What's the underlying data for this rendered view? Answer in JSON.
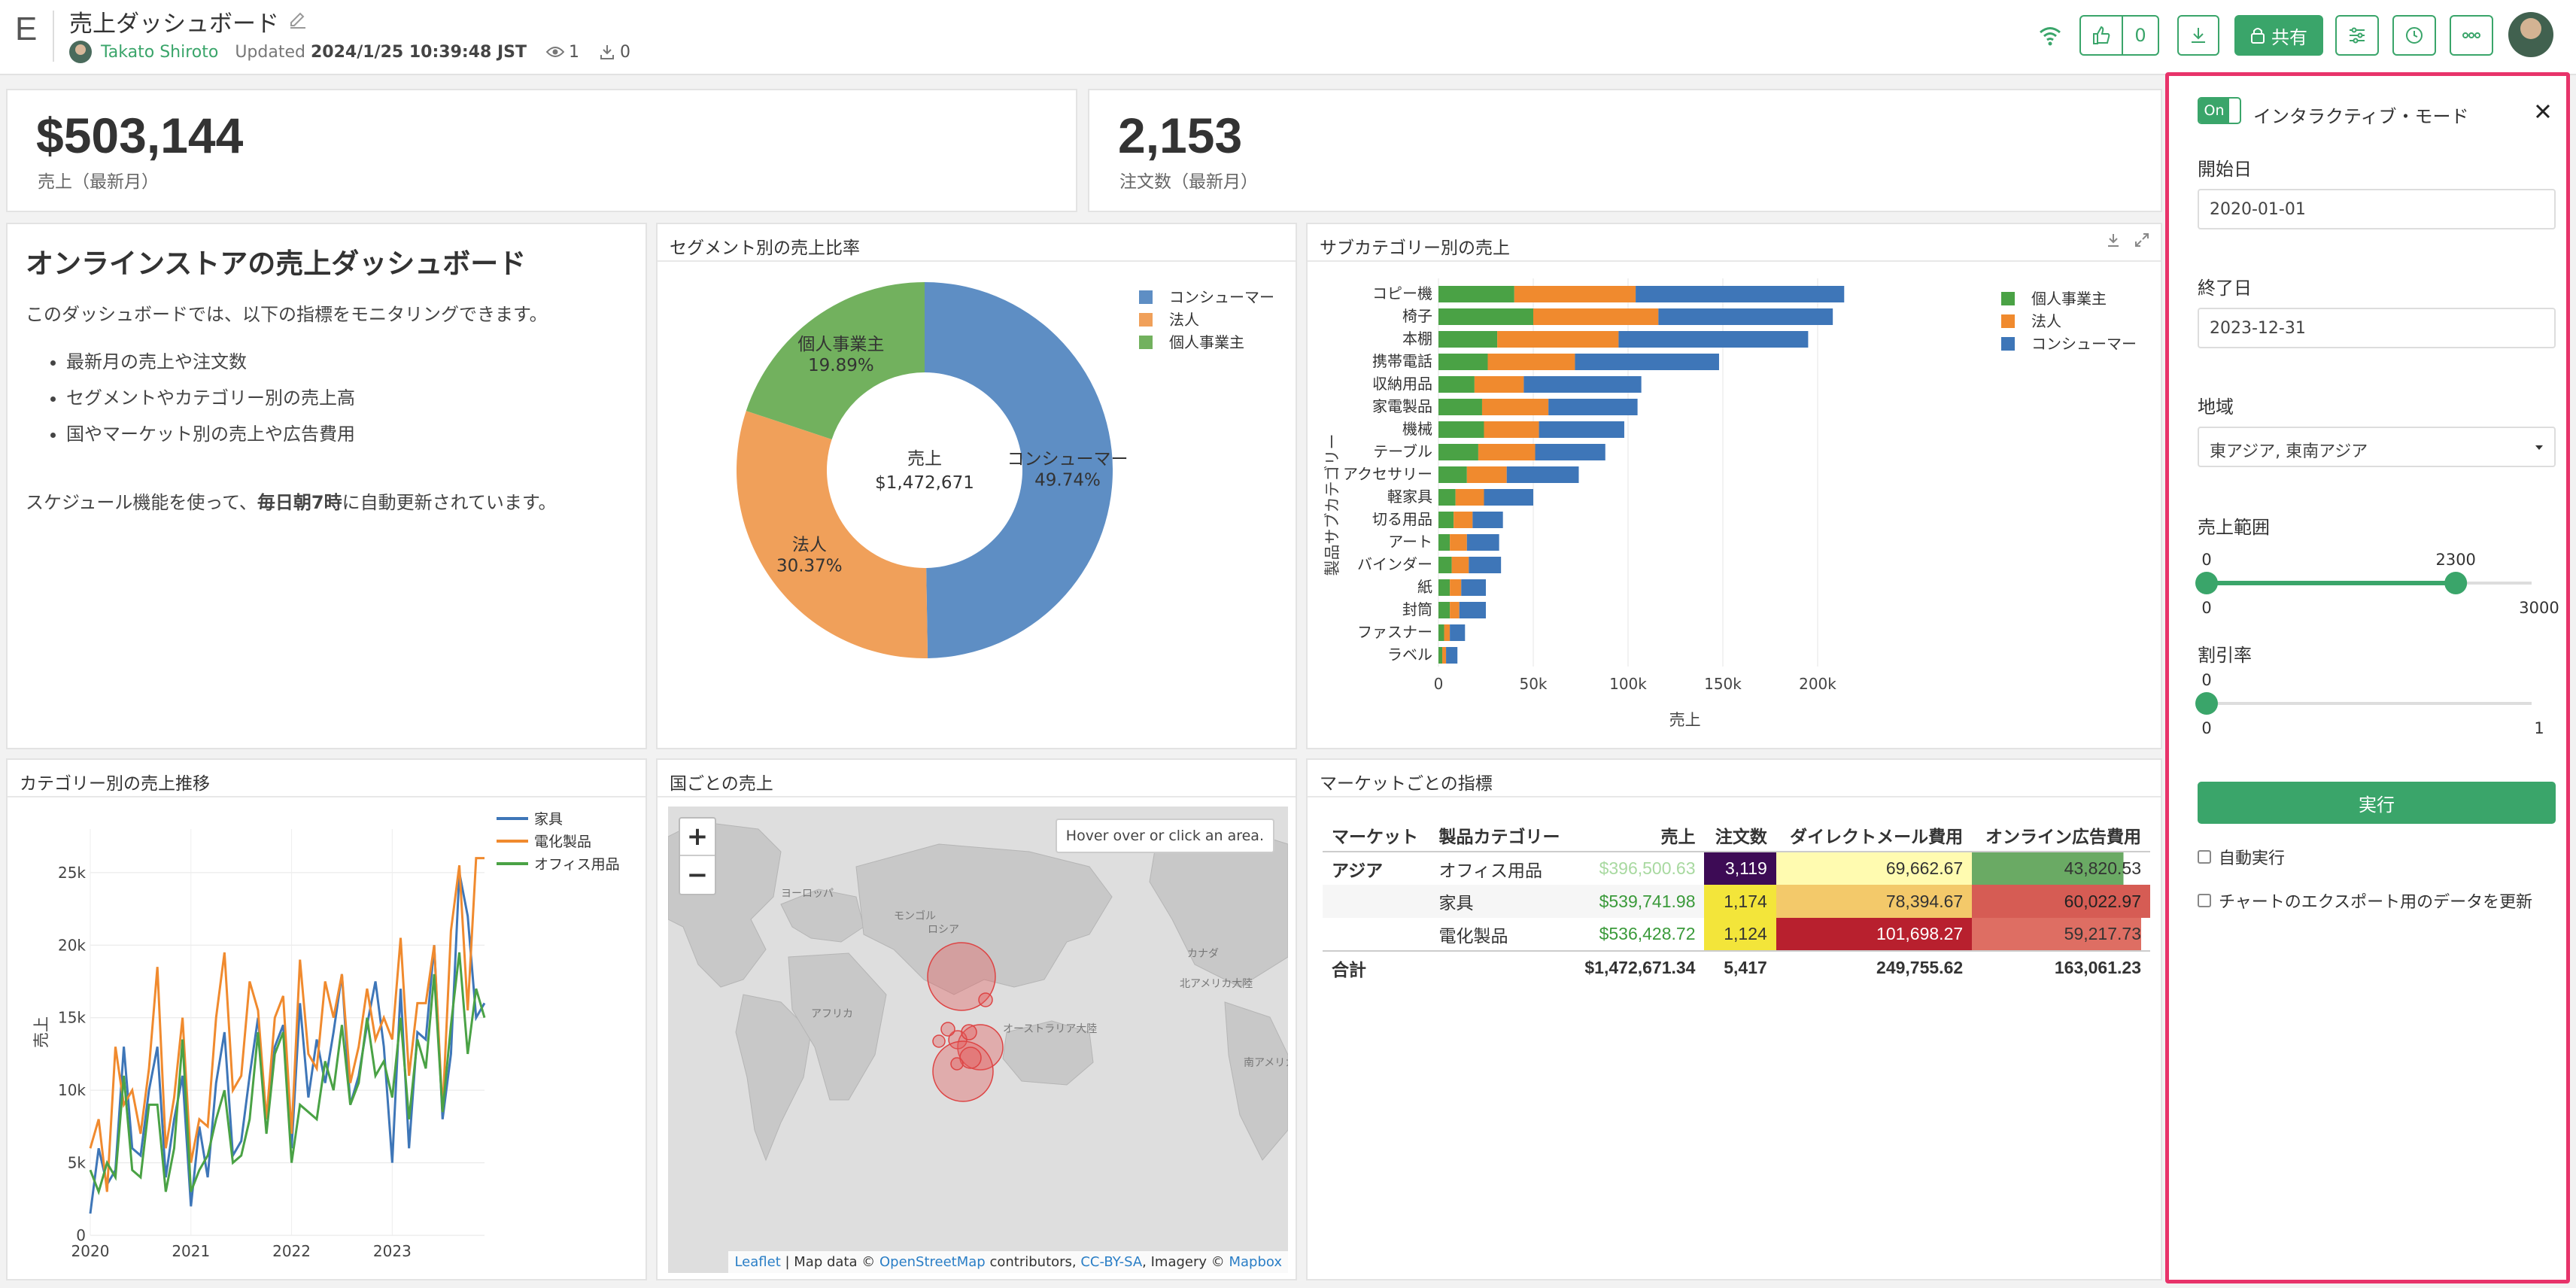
{
  "header": {
    "logo": "E",
    "title": "売上ダッシュボード",
    "author": "Takato Shiroto",
    "updated_prefix": "Updated",
    "updated_at": "2024/1/25 10:39:48 JST",
    "views": "1",
    "downloads": "0",
    "like_count": "0",
    "share_label": "共有"
  },
  "kpis": [
    {
      "value": "$503,144",
      "label": "売上（最新月）"
    },
    {
      "value": "2,153",
      "label": "注文数（最新月）"
    }
  ],
  "intro": {
    "title": "オンラインストアの売上ダッシュボード",
    "lead": "このダッシュボードでは、以下の指標をモニタリングできます。",
    "bullets": [
      "最新月の売上や注文数",
      "セグメントやカテゴリー別の売上高",
      "国やマーケット別の売上や広告費用"
    ],
    "schedule_prefix": "スケジュール機能を使って、",
    "schedule_bold": "毎日朝7時",
    "schedule_suffix": "に自動更新されています。"
  },
  "cards": {
    "segment": "セグメント別の売上比率",
    "subcategory": "サブカテゴリー別の売上",
    "trend": "カテゴリー別の売上推移",
    "country": "国ごとの売上",
    "market": "マーケットごとの指標"
  },
  "chart_data": [
    {
      "type": "pie",
      "title": "セグメント別の売上比率",
      "center_label": "売上",
      "center_value": "$1,472,671",
      "labels": [
        "コンシューマー",
        "法人",
        "個人事業主"
      ],
      "values": [
        49.74,
        30.37,
        19.89
      ],
      "value_labels": [
        "49.74%",
        "30.37%",
        "19.89%"
      ],
      "colors": [
        "#5e8ec4",
        "#f0a05a",
        "#72b15e"
      ],
      "legend": "top-right"
    },
    {
      "type": "bar",
      "orientation": "horizontal",
      "stacked": true,
      "title": "サブカテゴリー別の売上",
      "xlabel": "売上",
      "ylabel": "製品サブカテゴリー",
      "categories": [
        "コピー機",
        "椅子",
        "本棚",
        "携帯電話",
        "収納用品",
        "家電製品",
        "機械",
        "テーブル",
        "アクセサリー",
        "軽家具",
        "切る用品",
        "アート",
        "バインダー",
        "紙",
        "封筒",
        "ファスナー",
        "ラベル"
      ],
      "series": [
        {
          "name": "個人事業主",
          "color": "#4aa245",
          "values": [
            40000,
            50000,
            31000,
            26000,
            19000,
            23000,
            24000,
            21000,
            15000,
            9000,
            8000,
            6000,
            7000,
            6000,
            6000,
            3000,
            2000
          ]
        },
        {
          "name": "法人",
          "color": "#f08a2e",
          "values": [
            64000,
            66000,
            64000,
            46000,
            26000,
            35000,
            29000,
            30000,
            21000,
            15000,
            10000,
            9000,
            9000,
            6000,
            5000,
            3000,
            2000
          ]
        },
        {
          "name": "コンシューマー",
          "color": "#3e76b8",
          "values": [
            110000,
            92000,
            100000,
            76000,
            62000,
            47000,
            45000,
            37000,
            38000,
            26000,
            16000,
            17000,
            17000,
            13000,
            14000,
            8000,
            6000
          ]
        }
      ],
      "xticks": [
        "0",
        "50k",
        "100k",
        "150k",
        "200k"
      ],
      "xlim": [
        0,
        250000
      ],
      "legend": "right"
    },
    {
      "type": "line",
      "title": "カテゴリー別の売上推移",
      "ylabel": "売上",
      "xticks": [
        "2020",
        "2021",
        "2022",
        "2023"
      ],
      "yticks": [
        "0",
        "5k",
        "10k",
        "15k",
        "20k",
        "25k"
      ],
      "ylim": [
        0,
        28000
      ],
      "x_count": 48,
      "series": [
        {
          "name": "家具",
          "color": "#3e76b8",
          "values": [
            1500,
            6000,
            3500,
            4500,
            13000,
            6000,
            5500,
            10000,
            13000,
            4000,
            8000,
            11000,
            2000,
            7500,
            4000,
            10500,
            14000,
            5500,
            6500,
            11000,
            15000,
            8000,
            13000,
            14500,
            6000,
            16000,
            9500,
            13500,
            10500,
            14000,
            18000,
            9000,
            11000,
            14500,
            17500,
            13000,
            5000,
            17000,
            6000,
            14000,
            13500,
            20000,
            8000,
            12500,
            25000,
            22000,
            15000,
            16000
          ]
        },
        {
          "name": "電化製品",
          "color": "#f08a2e",
          "values": [
            6000,
            8000,
            3000,
            13000,
            9000,
            10000,
            7000,
            11500,
            18500,
            6000,
            9500,
            15000,
            5000,
            8000,
            7500,
            15000,
            19500,
            10000,
            11000,
            17500,
            15500,
            8000,
            15000,
            16500,
            7000,
            19000,
            12500,
            11500,
            17500,
            15000,
            18000,
            10500,
            13000,
            17000,
            13500,
            15000,
            13500,
            20500,
            11000,
            16000,
            16000,
            20000,
            8500,
            21000,
            25500,
            15500,
            26000,
            26000
          ]
        },
        {
          "name": "オフィス用品",
          "color": "#4aa245",
          "values": [
            4500,
            3000,
            5000,
            4000,
            11000,
            4500,
            4000,
            9000,
            9000,
            3000,
            6000,
            13500,
            3000,
            4500,
            5500,
            8000,
            10000,
            5000,
            5500,
            8000,
            14000,
            7000,
            12500,
            14000,
            5000,
            9000,
            8500,
            8000,
            12000,
            10000,
            14500,
            9000,
            10500,
            15000,
            11000,
            12000,
            9500,
            15000,
            8000,
            13500,
            11500,
            18000,
            8500,
            14500,
            19500,
            12500,
            17000,
            15000
          ]
        }
      ],
      "legend": "top-right"
    },
    {
      "type": "table",
      "title": "マーケットごとの指標",
      "columns": [
        "マーケット",
        "製品カテゴリー",
        "売上",
        "注文数",
        "ダイレクトメール費用",
        "オンライン広告費用"
      ],
      "rows": [
        {
          "market": "アジア",
          "category": "オフィス用品",
          "sales": "$396,500.63",
          "orders": "3,119",
          "mail": "69,662.67",
          "ads": "43,820.53"
        },
        {
          "market": "",
          "category": "家具",
          "sales": "$539,741.98",
          "orders": "1,174",
          "mail": "78,394.67",
          "ads": "60,022.97"
        },
        {
          "market": "",
          "category": "電化製品",
          "sales": "$536,428.72",
          "orders": "1,124",
          "mail": "101,698.27",
          "ads": "59,217.73"
        }
      ],
      "total": {
        "label": "合計",
        "sales": "$1,472,671.34",
        "orders": "5,417",
        "mail": "249,755.62",
        "ads": "163,061.23"
      }
    }
  ],
  "map": {
    "zoom_in": "+",
    "zoom_out": "−",
    "hover_hint": "Hover over or click an area.",
    "attribution": {
      "leaflet": "Leaflet",
      "text1": " | Map data © ",
      "osm": "OpenStreetMap",
      "text2": " contributors, ",
      "ccbysa": "CC-BY-SA",
      "text3": ", Imagery © ",
      "mapbox": "Mapbox"
    },
    "labels": {
      "russia": "ロシア",
      "canada": "カナダ",
      "north_america": "北アメリカ大陸",
      "south_america": "南アメリカ大陸",
      "africa": "アフリカ",
      "australia": "オーストラリア大陸",
      "europe": "ヨーロッパ",
      "mongolia": "モンゴル"
    }
  },
  "panel": {
    "toggle": "On",
    "title": "インタラクティブ・モード",
    "start_label": "開始日",
    "start_value": "2020-01-01",
    "end_label": "終了日",
    "end_value": "2023-12-31",
    "region_label": "地域",
    "region_value": "東アジア, 東南アジア",
    "sales_range_label": "売上範囲",
    "sales_range": {
      "min": "0",
      "max": "3000",
      "low": "0",
      "high": "2300",
      "low_value": 0,
      "high_value": 2300,
      "max_value": 3000
    },
    "discount_label": "割引率",
    "discount": {
      "min": "0",
      "max": "1",
      "value_label": "0",
      "value": 0
    },
    "run_label": "実行",
    "auto_run": "自動実行",
    "export_refresh": "チャートのエクスポート用のデータを更新"
  }
}
